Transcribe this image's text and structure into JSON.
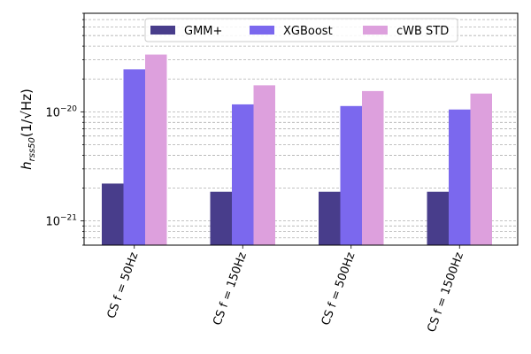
{
  "chart_data": {
    "type": "bar",
    "scale": "log",
    "categories": [
      "CS f = 50Hz",
      "CS f = 150Hz",
      "CS f = 500Hz",
      "CS f = 1500Hz"
    ],
    "series": [
      {
        "name": "GMM+",
        "color": "#483d8b",
        "values": [
          2.2e-21,
          1.85e-21,
          1.85e-21,
          1.85e-21
        ]
      },
      {
        "name": "XGBoost",
        "color": "#7b68ee",
        "values": [
          2.45e-20,
          1.17e-20,
          1.13e-20,
          1.05e-20
        ]
      },
      {
        "name": "cWB STD",
        "color": "#dda0dd",
        "values": [
          3.35e-20,
          1.75e-20,
          1.55e-20,
          1.47e-20
        ]
      }
    ],
    "ylabel": "h_rss50 (1/√Hz)",
    "ylabel_parts": {
      "base": "h",
      "sub": "rss50",
      "rest": "(1/√Hz)"
    },
    "y_ticks": [
      {
        "value": 1e-21,
        "base": "10",
        "exp": "−21"
      },
      {
        "value": 1e-20,
        "base": "10",
        "exp": "−20"
      }
    ],
    "ylim": [
      6e-22,
      8e-20
    ],
    "grid": "y-major-and-minor-dashed",
    "legend_position": "top-center"
  }
}
